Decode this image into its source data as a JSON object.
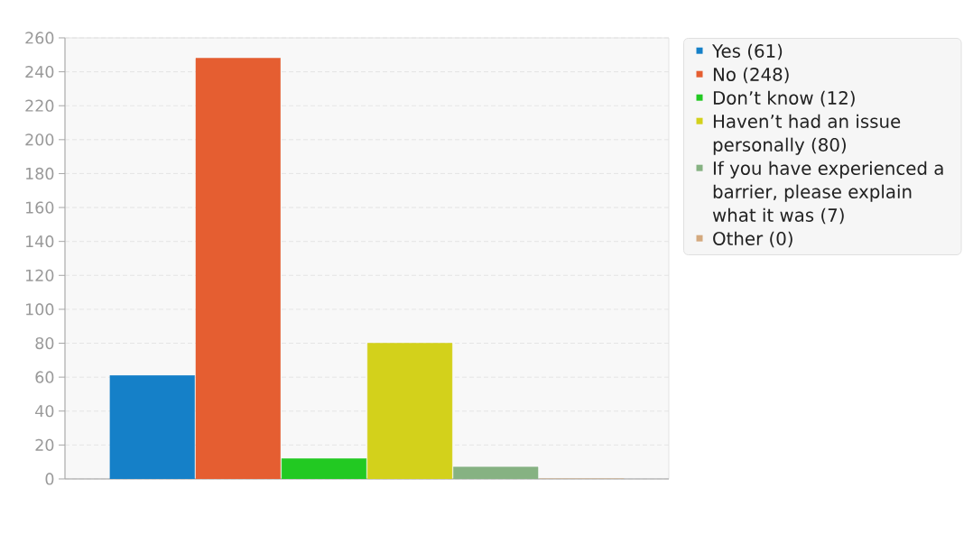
{
  "chart_data": {
    "type": "bar",
    "categories": [
      null
    ],
    "series": [
      {
        "name": "Yes (61)",
        "color": "#1580c8",
        "values": [
          61
        ]
      },
      {
        "name": "No (248)",
        "color": "#e55e31",
        "values": [
          248
        ]
      },
      {
        "name": "Don’t know (12)",
        "color": "#22c922",
        "values": [
          12
        ]
      },
      {
        "name": "Haven’t had an issue personally (80)",
        "color": "#d3d11b",
        "values": [
          80
        ]
      },
      {
        "name": "If you have experienced a barrier, please explain what it was (7)",
        "color": "#86b282",
        "values": [
          7
        ]
      },
      {
        "name": "Other (0)",
        "color": "#d4a97e",
        "values": [
          0
        ]
      }
    ],
    "ylim": [
      0,
      260
    ],
    "yticks": [
      0,
      20,
      40,
      60,
      80,
      100,
      120,
      140,
      160,
      180,
      200,
      220,
      240,
      260
    ],
    "grid": "y",
    "legend": "top right"
  }
}
